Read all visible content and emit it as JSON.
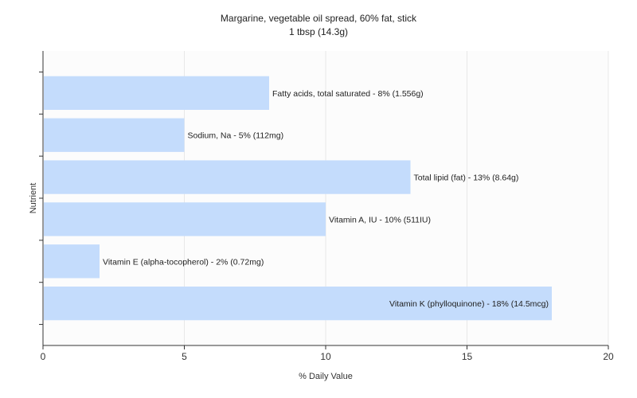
{
  "chart_data": {
    "type": "bar",
    "orientation": "horizontal",
    "title": "Margarine, vegetable oil spread, 60% fat, stick",
    "subtitle": "1 tbsp (14.3g)",
    "xlabel": "% Daily Value",
    "ylabel": "Nutrient",
    "xlim": [
      0,
      20
    ],
    "xticks": [
      0,
      5,
      10,
      15,
      20
    ],
    "grid": true,
    "bar_color": "#c4dcfc",
    "categories": [
      "Fatty acids, total saturated",
      "Sodium, Na",
      "Total lipid (fat)",
      "Vitamin A, IU",
      "Vitamin E (alpha-tocopherol)",
      "Vitamin K (phylloquinone)"
    ],
    "values": [
      8,
      5,
      13,
      10,
      2,
      18
    ],
    "bar_labels": [
      "Fatty acids, total saturated - 8% (1.556g)",
      "Sodium, Na - 5% (112mg)",
      "Total lipid (fat) - 13% (8.64g)",
      "Vitamin A, IU - 10% (511IU)",
      "Vitamin E (alpha-tocopherol) - 2% (0.72mg)",
      "Vitamin K (phylloquinone) - 18% (14.5mcg)"
    ]
  }
}
